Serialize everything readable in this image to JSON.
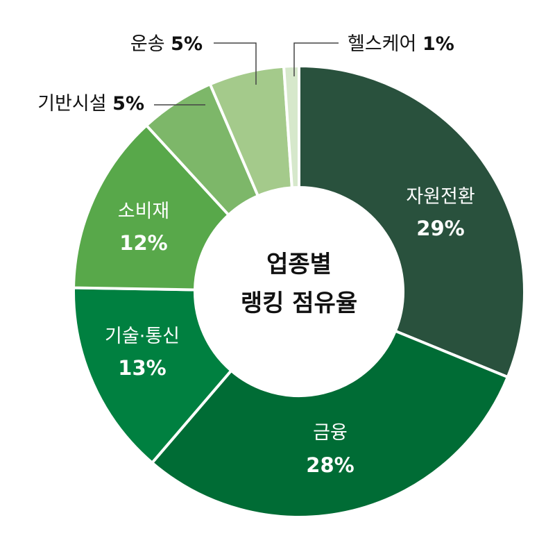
{
  "chart_data": {
    "type": "pie",
    "title": "업종별 랭킹 점유율",
    "title_lines": [
      "업종별",
      "랭킹 점유율"
    ],
    "categories": [
      "자원전환",
      "금융",
      "기술·통신",
      "소비재",
      "기반시설",
      "운송",
      "헬스케어"
    ],
    "values": [
      29,
      28,
      13,
      12,
      5,
      5,
      1
    ],
    "value_labels": [
      "29%",
      "28%",
      "13%",
      "12%",
      "5%",
      "5%",
      "1%"
    ],
    "colors": [
      "#29513d",
      "#006c35",
      "#008040",
      "#58a84a",
      "#7db769",
      "#a4ca8b",
      "#d6e8cb"
    ],
    "donut": true
  }
}
